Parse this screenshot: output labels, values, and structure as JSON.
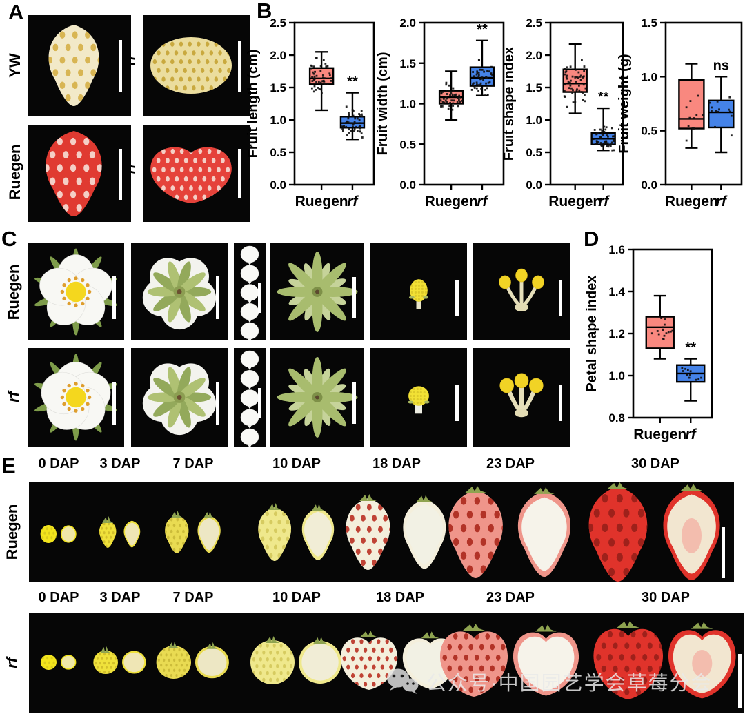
{
  "panels": {
    "A": {
      "label": "A",
      "rows": [
        {
          "label": "YW"
        },
        {
          "label": "Ruegen"
        }
      ],
      "variant_label": "rf",
      "photos": [
        {
          "name": "yw-fruit",
          "shape": "conical",
          "body": "#F2E9C8",
          "dots": "#D8B553"
        },
        {
          "name": "yw-rf-fruit",
          "shape": "round",
          "body": "#EBDD9E",
          "dots": "#C9A93F"
        },
        {
          "name": "ruegen-fruit",
          "shape": "conical",
          "body": "#E03A31",
          "dots": "#F4CFC6"
        },
        {
          "name": "ruegen-rf-fruit",
          "shape": "heart",
          "body": "#E5423A",
          "dots": "#F4CFC6"
        }
      ]
    },
    "B": {
      "label": "B"
    },
    "C": {
      "label": "C",
      "rows": [
        {
          "label": "Ruegen",
          "italic": false
        },
        {
          "label": "rf",
          "italic": true
        }
      ],
      "columns": [
        "flower-front",
        "flower-back",
        "petal-series",
        "calyx",
        "receptacle",
        "stamens"
      ]
    },
    "D": {
      "label": "D"
    },
    "E": {
      "label": "E",
      "rows": [
        {
          "label": "Ruegen",
          "italic": false,
          "shape": "conical",
          "stages": [
            {
              "label": "0 DAP",
              "body": "#F2E41C",
              "dots": "#D9CB1E",
              "cut": "#EFE7A8"
            },
            {
              "label": "3 DAP",
              "body": "#EFE13B",
              "dots": "#D2BF2C",
              "cut": "#EFE6B5"
            },
            {
              "label": "7 DAP",
              "body": "#E9DB52",
              "dots": "#CCBC3A",
              "cut": "#EDE7C4"
            },
            {
              "label": "10 DAP",
              "body": "#EFE88C",
              "dots": "#D6CB60",
              "cut": "#F1EDD6"
            },
            {
              "label": "18 DAP",
              "body": "#F4EFDC",
              "dots": "#C04335",
              "cut": "#F2F1E4"
            },
            {
              "label": "23 DAP",
              "body": "#EF958A",
              "dots": "#B23327",
              "cut": "#F6F3EA"
            },
            {
              "label": "30 DAP",
              "body": "#E0332B",
              "dots": "#9E211B",
              "cut": "#F2E6D0"
            }
          ]
        },
        {
          "label": "rf",
          "italic": true,
          "shape": "round",
          "stages": [
            {
              "label": "0 DAP",
              "body": "#F2E41C",
              "dots": "#D9CB1E",
              "cut": "#EFE7A8"
            },
            {
              "label": "3 DAP",
              "body": "#EFE13B",
              "dots": "#D2BF2C",
              "cut": "#EFE6B5"
            },
            {
              "label": "7 DAP",
              "body": "#E9DB52",
              "dots": "#CCBC3A",
              "cut": "#EDE7C4"
            },
            {
              "label": "10 DAP",
              "body": "#EFE88C",
              "dots": "#D6CB60",
              "cut": "#F1EDD6"
            },
            {
              "label": "18 DAP",
              "body": "#F4EFDC",
              "dots": "#C04335",
              "cut": "#F2F1E4"
            },
            {
              "label": "23 DAP",
              "body": "#EF958A",
              "dots": "#B23327",
              "cut": "#F6F3EA"
            },
            {
              "label": "30 DAP",
              "body": "#E0332B",
              "dots": "#9E211B",
              "cut": "#F2E6D0"
            }
          ]
        }
      ]
    }
  },
  "chart_data": [
    {
      "id": "fruit-length",
      "type": "box",
      "ylabel": "Fruit length (cm)",
      "ylim": [
        0,
        2.5
      ],
      "yticks": [
        0,
        0.5,
        1,
        1.5,
        2,
        2.5
      ],
      "categories": [
        "Ruegen",
        "rf"
      ],
      "series": [
        {
          "name": "Ruegen",
          "color": "#F9887F",
          "low": 1.15,
          "q1": 1.55,
          "median": 1.64,
          "q3": 1.8,
          "high": 2.05,
          "sig": "",
          "n": 46
        },
        {
          "name": "rf",
          "color": "#4583E8",
          "low": 0.7,
          "q1": 0.88,
          "median": 0.95,
          "q3": 1.05,
          "high": 1.42,
          "sig": "**",
          "n": 46
        }
      ]
    },
    {
      "id": "fruit-width",
      "type": "box",
      "ylabel": "Fruit width (cm)",
      "ylim": [
        0,
        2
      ],
      "yticks": [
        0,
        0.5,
        1,
        1.5,
        2
      ],
      "categories": [
        "Ruegen",
        "rf"
      ],
      "series": [
        {
          "name": "Ruegen",
          "color": "#F9887F",
          "low": 0.8,
          "q1": 1.0,
          "median": 1.08,
          "q3": 1.16,
          "high": 1.4,
          "sig": "",
          "n": 46
        },
        {
          "name": "rf",
          "color": "#4583E8",
          "low": 1.1,
          "q1": 1.22,
          "median": 1.32,
          "q3": 1.45,
          "high": 1.78,
          "sig": "**",
          "n": 46
        }
      ]
    },
    {
      "id": "fruit-shape-index",
      "type": "box",
      "ylabel": "Fruit shape index",
      "ylim": [
        0,
        2.5
      ],
      "yticks": [
        0,
        0.5,
        1,
        1.5,
        2,
        2.5
      ],
      "categories": [
        "Ruegen",
        "rf"
      ],
      "series": [
        {
          "name": "Ruegen",
          "color": "#F9887F",
          "low": 1.1,
          "q1": 1.43,
          "median": 1.56,
          "q3": 1.78,
          "high": 2.17,
          "sig": "",
          "n": 50
        },
        {
          "name": "rf",
          "color": "#4583E8",
          "low": 0.53,
          "q1": 0.62,
          "median": 0.71,
          "q3": 0.8,
          "high": 1.18,
          "sig": "**",
          "n": 50
        }
      ]
    },
    {
      "id": "fruit-weight",
      "type": "box",
      "ylabel": "Fruit weight (g)",
      "ylim": [
        0,
        1.5
      ],
      "yticks": [
        0,
        0.5,
        1,
        1.5
      ],
      "categories": [
        "Ruegen",
        "rf"
      ],
      "series": [
        {
          "name": "Ruegen",
          "color": "#F9887F",
          "low": 0.34,
          "q1": 0.52,
          "median": 0.61,
          "q3": 0.97,
          "high": 1.12,
          "sig": "",
          "n": 11
        },
        {
          "name": "rf",
          "color": "#4583E8",
          "low": 0.3,
          "q1": 0.53,
          "median": 0.67,
          "q3": 0.78,
          "high": 1.0,
          "sig": "ns",
          "n": 13
        }
      ]
    },
    {
      "id": "petal-shape-index",
      "type": "box",
      "ylabel": "Petal shape index",
      "ylim": [
        0.8,
        1.6
      ],
      "yticks": [
        0.8,
        1,
        1.2,
        1.4,
        1.6
      ],
      "categories": [
        "Ruegen",
        "rf"
      ],
      "series": [
        {
          "name": "Ruegen",
          "color": "#F9887F",
          "low": 1.08,
          "q1": 1.13,
          "median": 1.23,
          "q3": 1.28,
          "high": 1.38,
          "sig": "",
          "n": 15
        },
        {
          "name": "rf",
          "color": "#4583E8",
          "low": 0.88,
          "q1": 0.97,
          "median": 1.01,
          "q3": 1.05,
          "high": 1.08,
          "sig": "**",
          "n": 13
        }
      ]
    }
  ],
  "watermark": {
    "icon": "wechat-icon",
    "text": "公众号·中国园艺学会草莓分会"
  }
}
